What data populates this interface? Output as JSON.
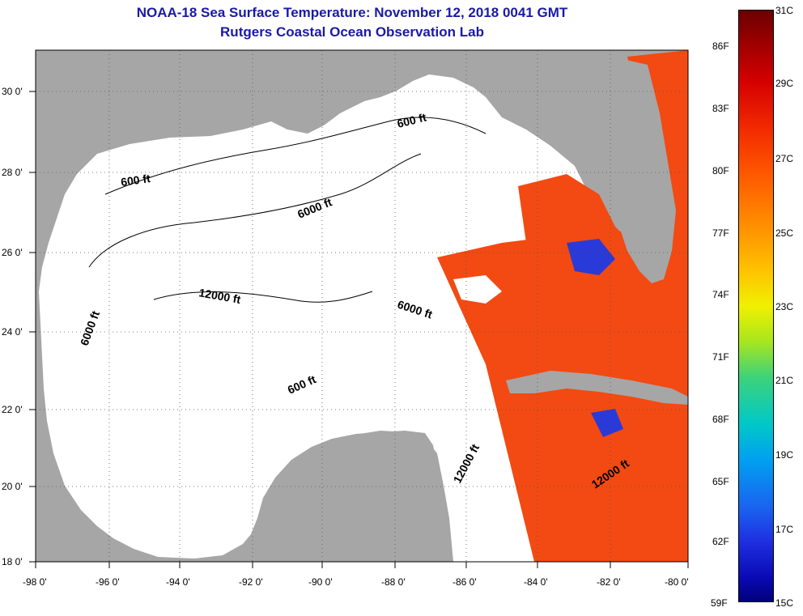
{
  "title_line1": "NOAA-18 Sea Surface Temperature:  November 12, 2018 0041 GMT",
  "title_line2": "Rutgers Coastal Ocean Observation Lab",
  "lat_labels": [
    "30 0'",
    "28 0'",
    "26 0'",
    "24 0'",
    "22 0'",
    "20 0'",
    "18 0'"
  ],
  "lon_labels": [
    "-98 0'",
    "-96 0'",
    "-94 0'",
    "-92 0'",
    "-90 0'",
    "-88 0'",
    "-86 0'",
    "-84 0'",
    "-82 0'",
    "-80 0'"
  ],
  "contour_labels": [
    "600 ft",
    "600 ft",
    "600 ft",
    "6000 ft",
    "6000 ft",
    "6000 ft",
    "12000 ft",
    "12000 ft",
    "12000 ft"
  ],
  "colorbar": {
    "fahrenheit": [
      "86F",
      "83F",
      "80F",
      "77F",
      "74F",
      "71F",
      "68F",
      "65F",
      "62F",
      "59F"
    ],
    "celsius": [
      "31C",
      "29C",
      "27C",
      "25C",
      "23C",
      "21C",
      "19C",
      "17C",
      "15C"
    ]
  },
  "colors": {
    "land": "#a6a6a6",
    "ocean": "#ffffff",
    "title": "#1a1aa6",
    "warm_water": "#f24a12"
  }
}
